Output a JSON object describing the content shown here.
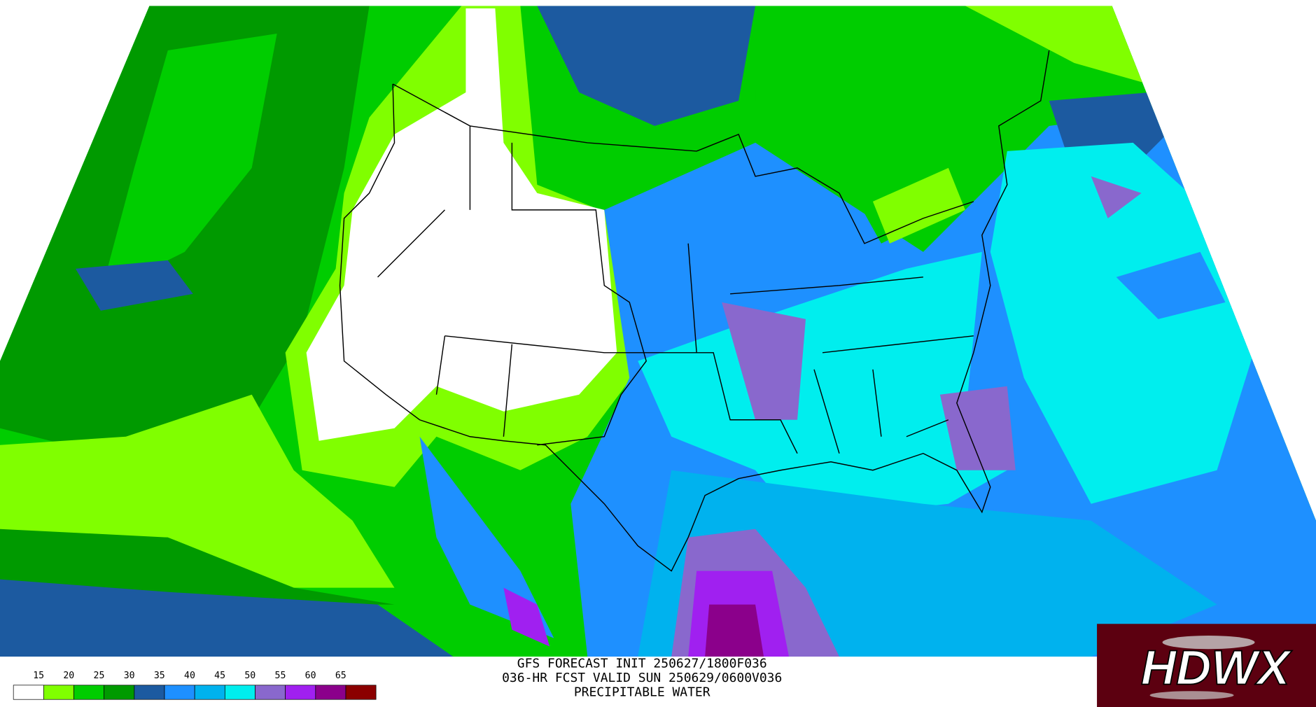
{
  "title_lines": [
    "GFS FORECAST INIT 250627/1800F036",
    "036-HR FCST VALID SUN 250629/0600V036",
    "PRECIPITABLE WATER"
  ],
  "legend": {
    "labels": [
      "15",
      "20",
      "25",
      "30",
      "35",
      "40",
      "45",
      "50",
      "55",
      "60",
      "65"
    ],
    "colors": [
      "#ffffff",
      "#80ff00",
      "#00cd00",
      "#009a00",
      "#1c5aa0",
      "#1e90ff",
      "#00b2ee",
      "#00eeee",
      "#8968cd",
      "#a020f0",
      "#8b008b",
      "#8b0000"
    ]
  },
  "logo": {
    "text": "HDWX"
  }
}
